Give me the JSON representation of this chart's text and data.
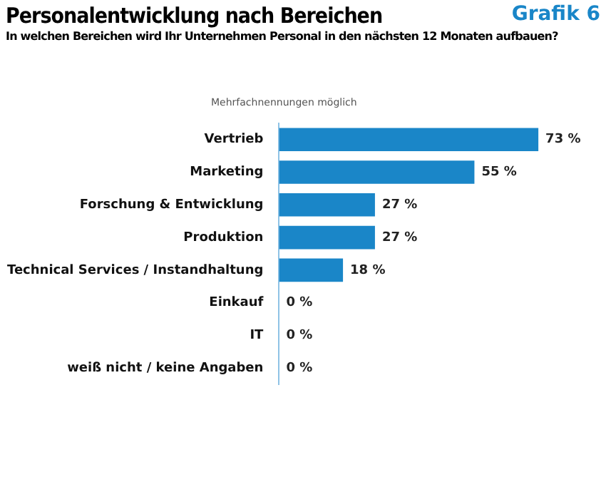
{
  "chart_data": {
    "type": "bar",
    "orientation": "horizontal",
    "title": "Personalentwicklung nach Bereichen",
    "subtitle": "In welchen Bereichen wird Ihr Unternehmen Personal in den nächsten 12 Monaten aufbauen?",
    "annotations": [
      "Grafik 6",
      "Mehrfachnennungen möglich"
    ],
    "categories": [
      "Vertrieb",
      "Marketing",
      "Forschung & Entwicklung",
      "Produktion",
      "Technical Services / Instandhaltung",
      "Einkauf",
      "IT",
      "weiß nicht / keine Angaben"
    ],
    "values": [
      73,
      55,
      27,
      27,
      18,
      0,
      0,
      0
    ],
    "value_labels": [
      "73 %",
      "55 %",
      "27 %",
      "27 %",
      "18 %",
      "0 %",
      "0 %",
      "0 %"
    ],
    "color": "#1a86c8",
    "legend": false
  }
}
